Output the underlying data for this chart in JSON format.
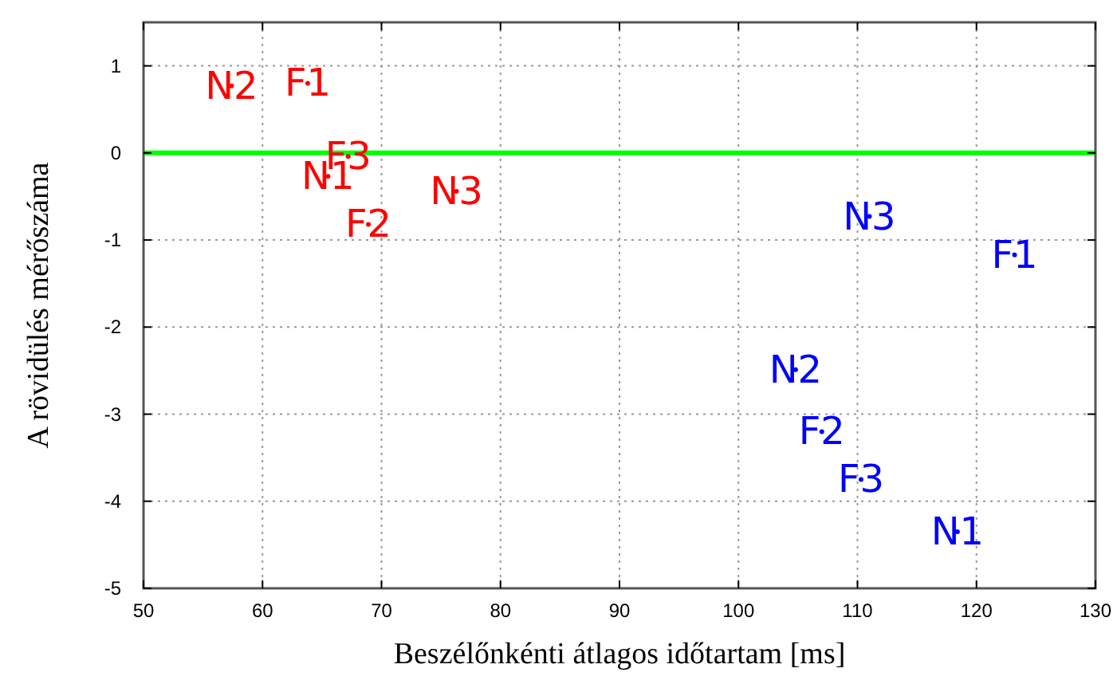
{
  "chart_data": {
    "type": "scatter",
    "xlabel": "Beszélőnkénti átlagos időtartam [ms]",
    "ylabel": "A rövidülés mérőszáma",
    "xlim": [
      50,
      130
    ],
    "xticks": [
      50,
      60,
      70,
      80,
      90,
      100,
      110,
      120,
      130
    ],
    "ylim": [
      -5,
      1.5
    ],
    "yticks": [
      -5,
      -4,
      -3,
      -2,
      -1,
      0,
      1
    ],
    "grid": true,
    "marker": "circle",
    "ref_lines": [
      {
        "axis": "y",
        "value": 0,
        "color": "#00ff00"
      }
    ],
    "series": [
      {
        "color": "#ff0000",
        "x": [
          57.4,
          63.8,
          67.2,
          65.5,
          68.9,
          76.3
        ],
        "values": [
          0.77,
          0.8,
          -0.04,
          -0.27,
          -0.82,
          -0.44
        ],
        "value_labels": [
          "N2",
          "F1",
          "F3",
          "N1",
          "F2",
          "N3"
        ]
      },
      {
        "color": "#0000ff",
        "x": [
          111,
          123.2,
          104.8,
          107,
          110.3,
          118.4
        ],
        "values": [
          -0.73,
          -1.17,
          -2.49,
          -3.2,
          -3.75,
          -4.35
        ],
        "value_labels": [
          "N3",
          "F1",
          "N2",
          "F2",
          "F3",
          "N1"
        ]
      }
    ]
  }
}
